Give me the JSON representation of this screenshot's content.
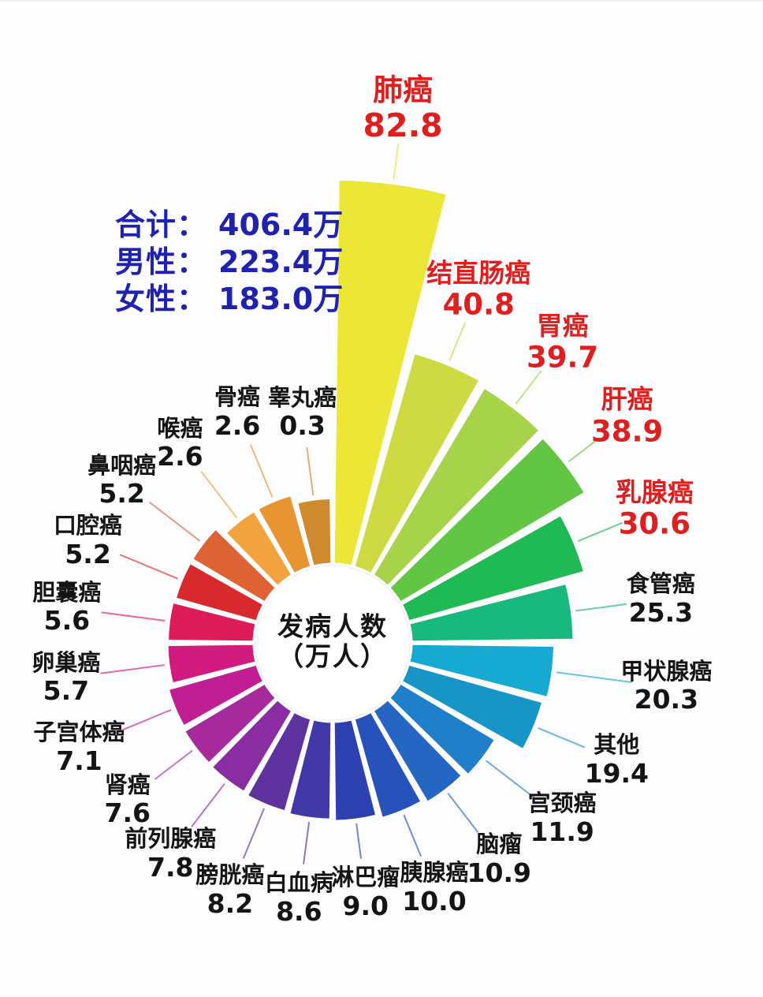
{
  "page": {
    "background": "#fdfdff"
  },
  "stats": {
    "color": "#1e22ae",
    "rows": [
      {
        "label": "合计：",
        "value": "406.4万"
      },
      {
        "label": "男性：",
        "value": "223.4万"
      },
      {
        "label": "女性：",
        "value": "183.0万"
      }
    ]
  },
  "center_label": {
    "line1": "发病人数",
    "line2": "（万人）",
    "color": "#141414"
  },
  "chart_data": {
    "type": "pie",
    "subtype": "nightingale-rose",
    "title": "",
    "unit": "万人",
    "legend_position": "none",
    "order": "clockwise-from-top",
    "label_color": "#141414",
    "highlight_label_color": "#de1f1e",
    "items": [
      {
        "name": "肺癌",
        "value": 82.8,
        "value_label": "82.8",
        "color": "#ece637",
        "highlighted": true
      },
      {
        "name": "结直肠癌",
        "value": 40.8,
        "value_label": "40.8",
        "color": "#cdda41",
        "highlighted": true
      },
      {
        "name": "胃癌",
        "value": 39.7,
        "value_label": "39.7",
        "color": "#a6d34a",
        "highlighted": true
      },
      {
        "name": "肝癌",
        "value": 38.9,
        "value_label": "38.9",
        "color": "#62c544",
        "highlighted": true
      },
      {
        "name": "乳腺癌",
        "value": 30.6,
        "value_label": "30.6",
        "color": "#1fba55",
        "highlighted": true
      },
      {
        "name": "食管癌",
        "value": 25.3,
        "value_label": "25.3",
        "color": "#17b97e",
        "highlighted": false
      },
      {
        "name": "甲状腺癌",
        "value": 20.3,
        "value_label": "20.3",
        "color": "#16aad2",
        "highlighted": false
      },
      {
        "name": "其他",
        "value": 19.4,
        "value_label": "19.4",
        "color": "#1795c7",
        "highlighted": false
      },
      {
        "name": "宫颈癌",
        "value": 11.9,
        "value_label": "11.9",
        "color": "#1f7fc9",
        "highlighted": false
      },
      {
        "name": "脑瘤",
        "value": 10.9,
        "value_label": "10.9",
        "color": "#2466c1",
        "highlighted": false
      },
      {
        "name": "胰腺癌",
        "value": 10.0,
        "value_label": "10.0",
        "color": "#2752ba",
        "highlighted": false
      },
      {
        "name": "淋巴瘤",
        "value": 9.0,
        "value_label": "9.0",
        "color": "#2c40b0",
        "highlighted": false
      },
      {
        "name": "白血病",
        "value": 8.6,
        "value_label": "8.6",
        "color": "#4137a7",
        "highlighted": false
      },
      {
        "name": "膀胱癌",
        "value": 8.2,
        "value_label": "8.2",
        "color": "#5f339f",
        "highlighted": false
      },
      {
        "name": "前列腺癌",
        "value": 7.8,
        "value_label": "7.8",
        "color": "#8a2da2",
        "highlighted": false
      },
      {
        "name": "肾癌",
        "value": 7.6,
        "value_label": "7.6",
        "color": "#a72a9c",
        "highlighted": false
      },
      {
        "name": "子宫体癌",
        "value": 7.1,
        "value_label": "7.1",
        "color": "#c01e92",
        "highlighted": false
      },
      {
        "name": "卵巢癌",
        "value": 5.7,
        "value_label": "5.7",
        "color": "#d11b7e",
        "highlighted": false
      },
      {
        "name": "胆囊癌",
        "value": 5.6,
        "value_label": "5.6",
        "color": "#dc1d59",
        "highlighted": false
      },
      {
        "name": "口腔癌",
        "value": 5.2,
        "value_label": "5.2",
        "color": "#d8292e",
        "highlighted": false
      },
      {
        "name": "鼻咽癌",
        "value": 5.2,
        "value_label": "5.2",
        "color": "#dd6234",
        "highlighted": false
      },
      {
        "name": "喉癌",
        "value": 2.6,
        "value_label": "2.6",
        "color": "#f2a23e",
        "highlighted": false
      },
      {
        "name": "骨癌",
        "value": 2.6,
        "value_label": "2.6",
        "color": "#e99433",
        "highlighted": false
      },
      {
        "name": "睾丸癌",
        "value": 0.3,
        "value_label": "0.3",
        "color": "#cf8a2d",
        "highlighted": false
      }
    ]
  }
}
